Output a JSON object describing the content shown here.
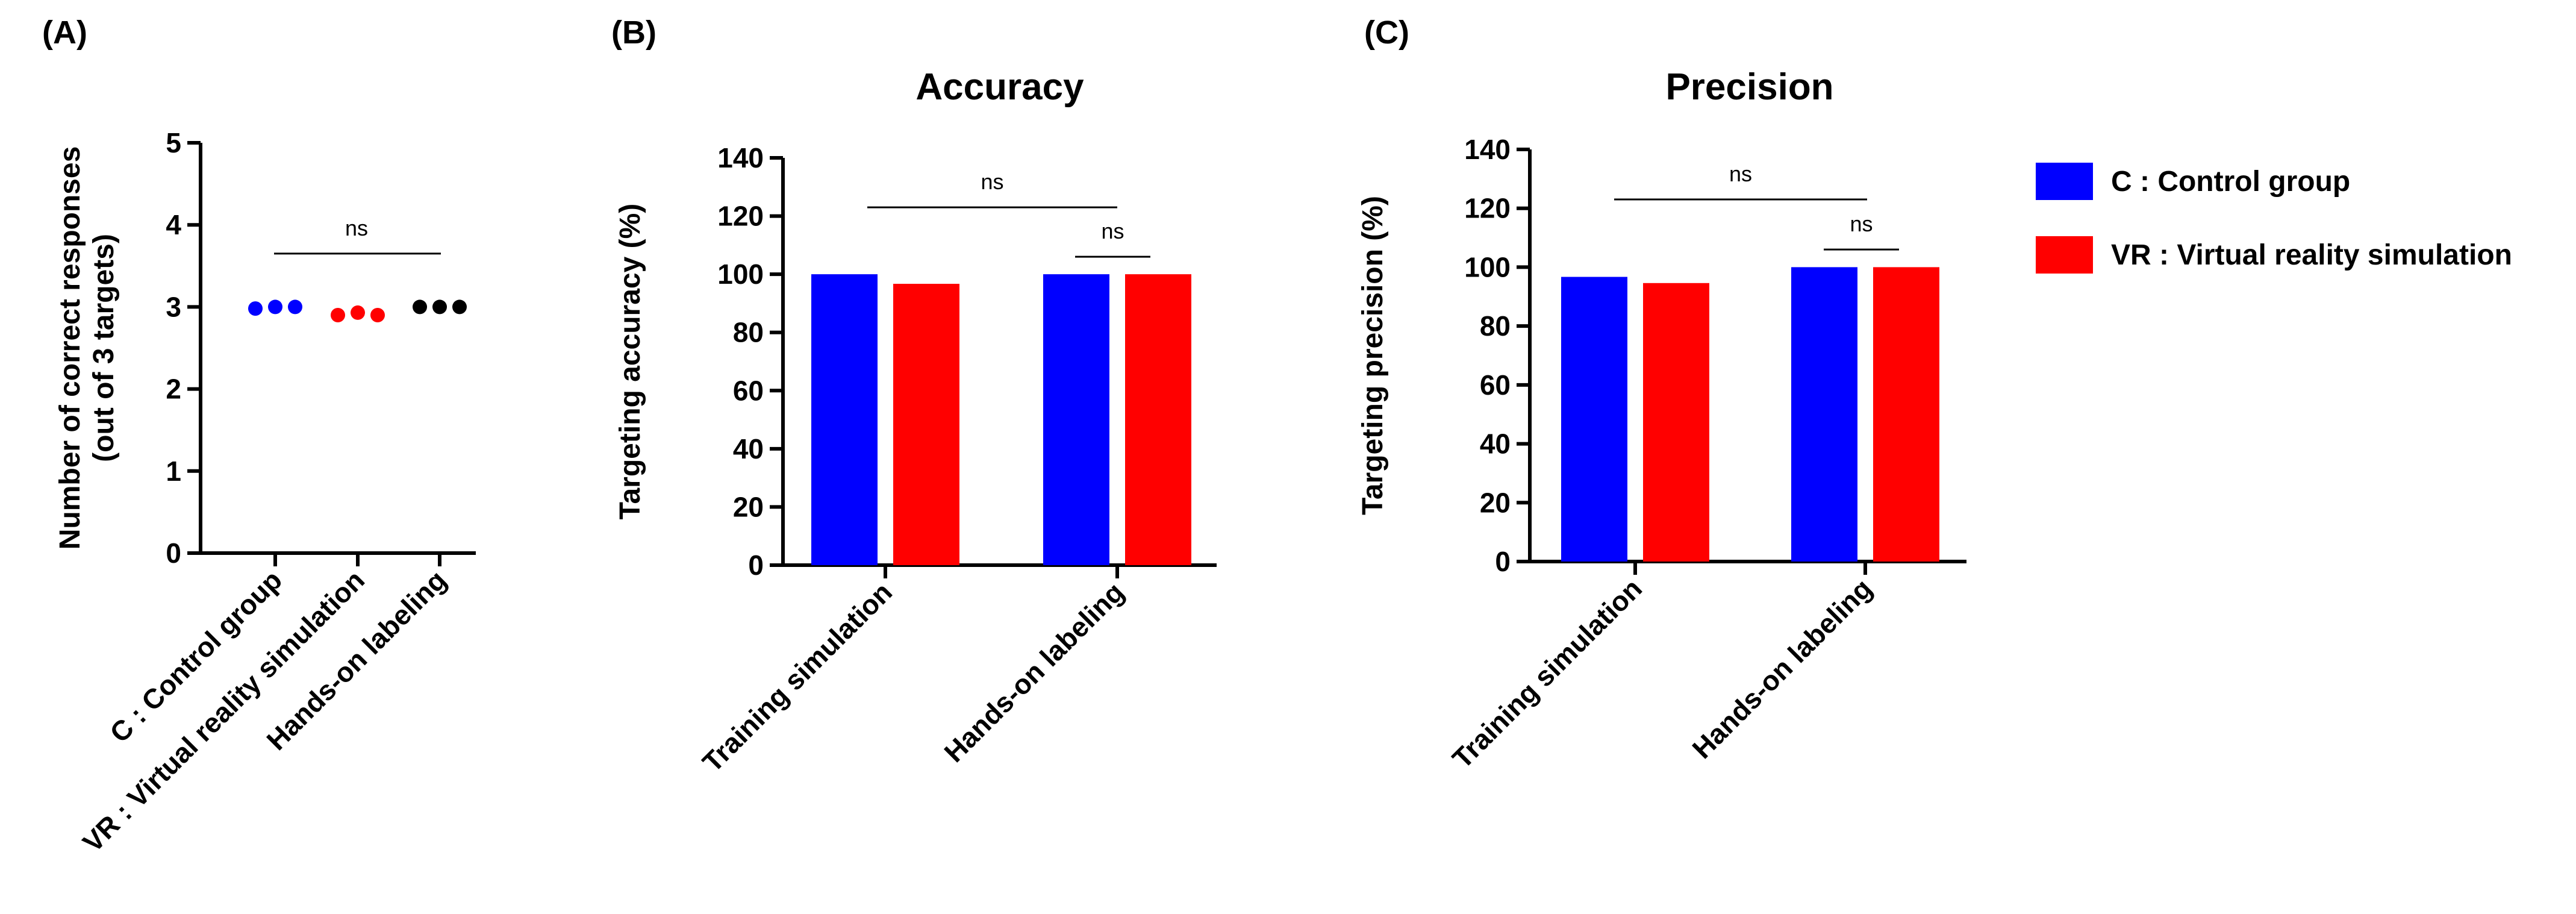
{
  "colors": {
    "control": "#0000FF",
    "vr": "#FF0000",
    "hands_on": "#000000"
  },
  "legend": [
    {
      "label": "C : Control group",
      "color": "#0000FF"
    },
    {
      "label": "VR : Virtual reality simulation",
      "color": "#FF0000"
    }
  ],
  "chart_data": [
    {
      "type": "scatter",
      "panel": "(A)",
      "title": "",
      "ylabel_line1": "Number of correct responses",
      "ylabel_line2": "(out of 3 targets)",
      "ylim": [
        0,
        5
      ],
      "yticks": [
        "0",
        "1",
        "2",
        "3",
        "4",
        "5"
      ],
      "categories": [
        "C : Control group",
        "VR : Virtual reality simulation",
        "Hands-on labeling"
      ],
      "points": [
        [
          2.98,
          3.0,
          3.0
        ],
        [
          2.9,
          2.93,
          2.9
        ],
        [
          3.0,
          3.0,
          3.0
        ]
      ],
      "significance": [
        {
          "text": "ns",
          "from": 0,
          "to": 2,
          "y": 3.65
        }
      ]
    },
    {
      "type": "bar",
      "panel": "(B)",
      "title": "Accuracy",
      "ylabel": "Targeting accuracy (%)",
      "ylim": [
        0,
        140
      ],
      "yticks": [
        "0",
        "20",
        "40",
        "60",
        "80",
        "100",
        "120",
        "140"
      ],
      "categories": [
        "Training simulation",
        "Hands-on labeling"
      ],
      "series": [
        {
          "name": "C : Control group",
          "values": [
            100,
            100
          ]
        },
        {
          "name": "VR : Virtual reality simulation",
          "values": [
            96.7,
            100
          ]
        }
      ],
      "significance": [
        {
          "text": "ns",
          "y": 123
        },
        {
          "text": "ns",
          "y": 106
        }
      ]
    },
    {
      "type": "bar",
      "panel": "(C)",
      "title": "Precision",
      "ylabel": "Targeting precision (%)",
      "ylim": [
        0,
        140
      ],
      "yticks": [
        "0",
        "20",
        "40",
        "60",
        "80",
        "100",
        "120",
        "140"
      ],
      "categories": [
        "Training simulation",
        "Hands-on labeling"
      ],
      "series": [
        {
          "name": "C : Control group",
          "values": [
            96.7,
            100
          ]
        },
        {
          "name": "VR : Virtual reality simulation",
          "values": [
            94.6,
            100
          ]
        }
      ],
      "significance": [
        {
          "text": "ns",
          "y": 123
        },
        {
          "text": "ns",
          "y": 106
        }
      ]
    }
  ]
}
